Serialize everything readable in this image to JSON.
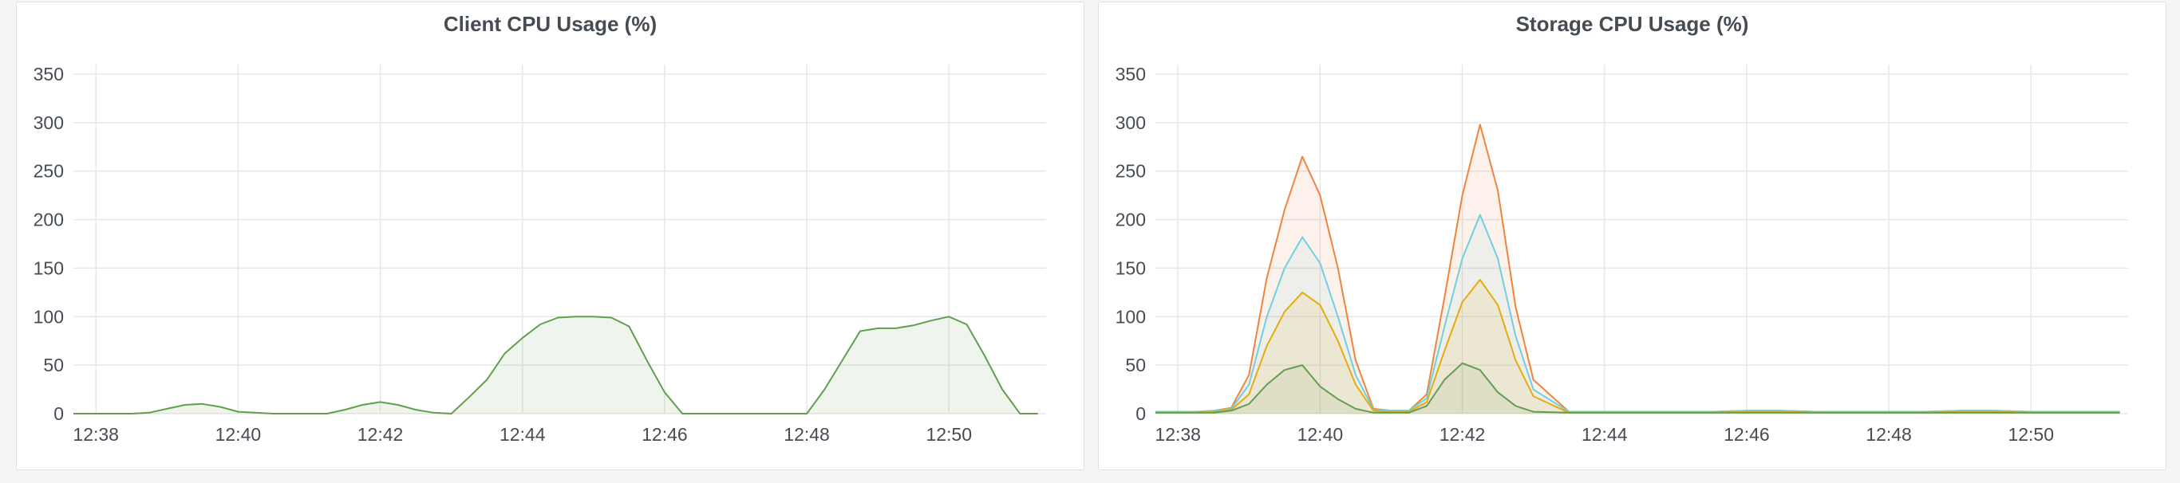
{
  "chart_data": [
    {
      "type": "area",
      "title": "Client CPU Usage (%)",
      "xlabel": "",
      "ylabel": "",
      "ylim": [
        0,
        350
      ],
      "yticks": [
        0,
        50,
        100,
        150,
        200,
        250,
        300,
        350
      ],
      "xlim": [
        "12:37:41",
        "12:51:22"
      ],
      "xticks": [
        "12:38",
        "12:40",
        "12:42",
        "12:44",
        "12:46",
        "12:48",
        "12:50"
      ],
      "grid": true,
      "series": [
        {
          "color": "#629e51",
          "x": [
            "12:37:41",
            "12:38:00",
            "12:38:30",
            "12:38:45",
            "12:39:00",
            "12:39:15",
            "12:39:30",
            "12:39:45",
            "12:40:00",
            "12:40:30",
            "12:41:00",
            "12:41:15",
            "12:41:30",
            "12:41:45",
            "12:42:00",
            "12:42:15",
            "12:42:30",
            "12:42:45",
            "12:43:00",
            "12:43:15",
            "12:43:30",
            "12:43:45",
            "12:44:00",
            "12:44:15",
            "12:44:30",
            "12:44:45",
            "12:45:00",
            "12:45:15",
            "12:45:30",
            "12:45:45",
            "12:46:00",
            "12:46:15",
            "12:46:30",
            "12:47:00",
            "12:47:30",
            "12:48:00",
            "12:48:15",
            "12:48:30",
            "12:48:45",
            "12:49:00",
            "12:49:15",
            "12:49:30",
            "12:49:45",
            "12:50:00",
            "12:50:15",
            "12:50:30",
            "12:50:45",
            "12:51:00",
            "12:51:15"
          ],
          "values": [
            0,
            0,
            0,
            1,
            5,
            9,
            10,
            7,
            2,
            0,
            0,
            0,
            4,
            9,
            12,
            9,
            4,
            1,
            0,
            17,
            35,
            62,
            78,
            92,
            99,
            100,
            100,
            99,
            90,
            55,
            22,
            0,
            0,
            0,
            0,
            0,
            25,
            55,
            85,
            88,
            88,
            91,
            96,
            100,
            92,
            60,
            25,
            0,
            0
          ]
        }
      ]
    },
    {
      "type": "area",
      "title": "Storage CPU Usage (%)",
      "xlabel": "",
      "ylabel": "",
      "ylim": [
        0,
        350
      ],
      "yticks": [
        0,
        50,
        100,
        150,
        200,
        250,
        300,
        350
      ],
      "xlim": [
        "12:37:41",
        "12:51:22"
      ],
      "xticks": [
        "12:38",
        "12:40",
        "12:42",
        "12:44",
        "12:46",
        "12:48",
        "12:50"
      ],
      "grid": true,
      "x": [
        "12:37:41",
        "12:38:00",
        "12:38:15",
        "12:38:30",
        "12:38:45",
        "12:39:00",
        "12:39:15",
        "12:39:30",
        "12:39:45",
        "12:40:00",
        "12:40:15",
        "12:40:30",
        "12:40:45",
        "12:41:00",
        "12:41:15",
        "12:41:30",
        "12:41:45",
        "12:42:00",
        "12:42:15",
        "12:42:30",
        "12:42:45",
        "12:43:00",
        "12:43:30",
        "12:44:00",
        "12:44:30",
        "12:45:00",
        "12:45:30",
        "12:46:00",
        "12:46:30",
        "12:47:00",
        "12:47:30",
        "12:48:00",
        "12:48:30",
        "12:49:00",
        "12:49:30",
        "12:50:00",
        "12:50:30",
        "12:51:00",
        "12:51:15"
      ],
      "series": [
        {
          "color": "#ef843c",
          "values": [
            2,
            2,
            2,
            3,
            6,
            40,
            140,
            210,
            265,
            225,
            150,
            55,
            5,
            3,
            3,
            20,
            120,
            225,
            298,
            230,
            110,
            35,
            2,
            2,
            2,
            2,
            2,
            3,
            3,
            2,
            2,
            2,
            2,
            3,
            3,
            2,
            2,
            2,
            2
          ]
        },
        {
          "color": "#6ed0e0",
          "values": [
            2,
            2,
            2,
            3,
            5,
            30,
            100,
            150,
            182,
            155,
            100,
            40,
            4,
            3,
            3,
            16,
            90,
            160,
            205,
            160,
            80,
            25,
            2,
            2,
            2,
            2,
            2,
            3,
            3,
            2,
            2,
            2,
            2,
            3,
            3,
            2,
            2,
            2,
            2
          ]
        },
        {
          "color": "#e5ac0e",
          "values": [
            1,
            1,
            1,
            2,
            4,
            20,
            70,
            105,
            125,
            112,
            75,
            30,
            3,
            2,
            2,
            12,
            65,
            115,
            138,
            112,
            55,
            18,
            1,
            1,
            1,
            1,
            1,
            2,
            2,
            1,
            1,
            1,
            1,
            2,
            2,
            1,
            1,
            1,
            1
          ]
        },
        {
          "color": "#629e51",
          "values": [
            1,
            1,
            1,
            1,
            3,
            10,
            30,
            45,
            50,
            28,
            15,
            5,
            1,
            1,
            1,
            8,
            35,
            52,
            45,
            22,
            8,
            2,
            1,
            1,
            1,
            1,
            1,
            1,
            1,
            1,
            1,
            1,
            1,
            1,
            1,
            1,
            1,
            1,
            1
          ]
        }
      ]
    }
  ]
}
